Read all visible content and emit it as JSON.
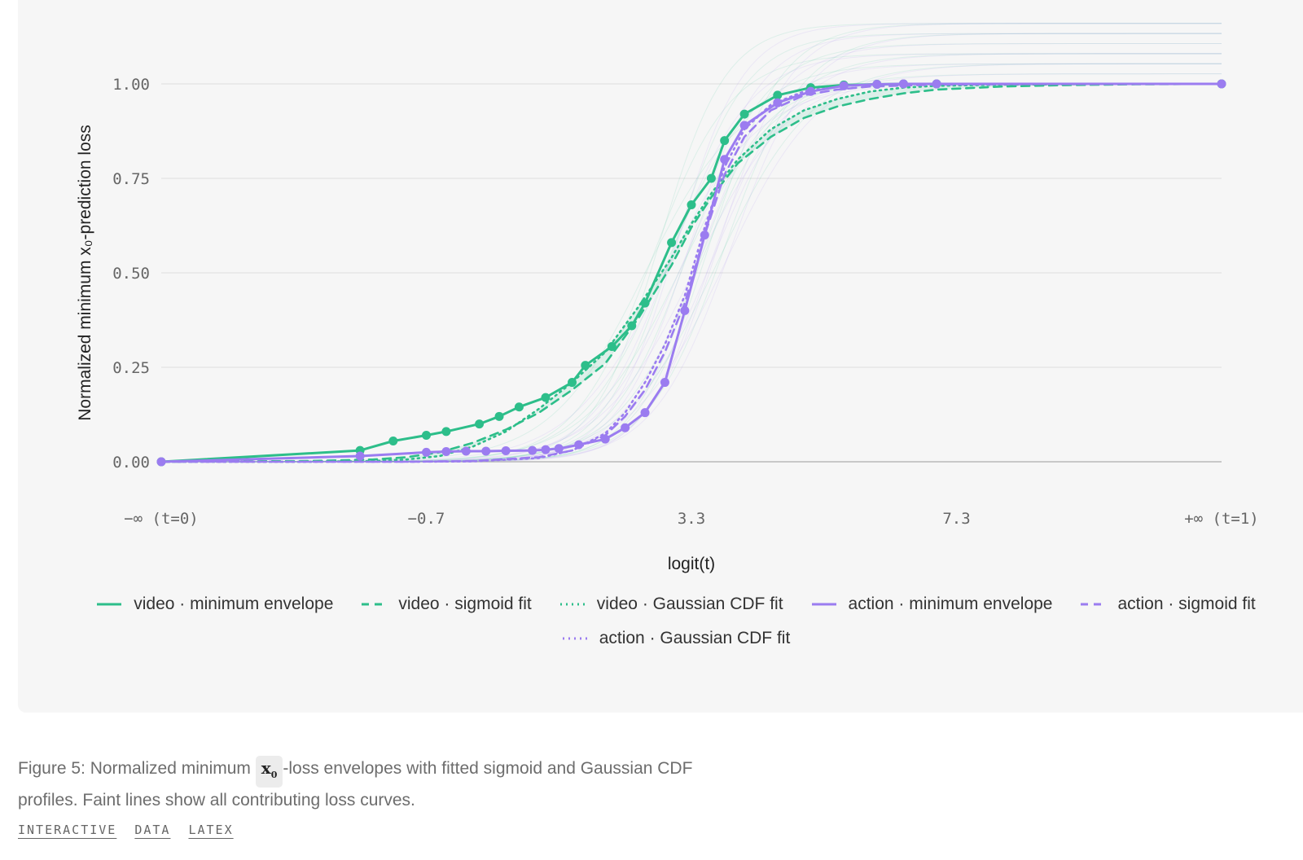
{
  "chart_data": {
    "type": "line",
    "xlabel": "logit(t)",
    "ylabel": "Normalized minimum x₀-prediction loss",
    "x_tick_labels": [
      "−∞ (t=0)",
      "−0.7",
      "3.3",
      "7.3",
      "+∞ (t=1)"
    ],
    "x_tick_values": [
      -4.7,
      -0.7,
      3.3,
      7.3,
      11.3
    ],
    "ylim": [
      0,
      1.2
    ],
    "y_ticks": [
      0.0,
      0.25,
      0.5,
      0.75,
      1.0
    ],
    "y_tick_labels": [
      "0.00",
      "0.25",
      "0.50",
      "0.75",
      "1.00"
    ],
    "grid": "horizontal",
    "legend_position": "bottom",
    "series": [
      {
        "name": "video · minimum envelope",
        "style": "solid-markers",
        "color": "#2dbe8a",
        "x": [
          -4.7,
          -1.7,
          -1.2,
          -0.7,
          -0.4,
          0.1,
          0.4,
          0.7,
          1.1,
          1.5,
          1.7,
          2.1,
          2.4,
          2.6,
          3.0,
          3.3,
          3.6,
          3.8,
          4.1,
          4.6,
          5.1,
          5.6,
          6.1,
          6.5,
          7.0
        ],
        "y": [
          0.0,
          0.03,
          0.055,
          0.07,
          0.08,
          0.1,
          0.12,
          0.145,
          0.17,
          0.21,
          0.255,
          0.305,
          0.36,
          0.42,
          0.58,
          0.68,
          0.75,
          0.85,
          0.92,
          0.97,
          0.99,
          0.997,
          0.999,
          1.0,
          1.0
        ],
        "x_end": 11.3,
        "y_end": 1.0
      },
      {
        "name": "video · sigmoid fit",
        "style": "dashed",
        "color": "#2dbe8a",
        "x": [
          -4.7,
          -2.5,
          -1.5,
          -1.0,
          -0.5,
          0.0,
          0.5,
          1.0,
          1.5,
          2.0,
          2.5,
          3.0,
          3.3,
          3.6,
          4.0,
          4.5,
          5.0,
          5.5,
          6.0,
          6.5,
          7.0,
          8.0,
          9.0,
          10.0,
          11.3
        ],
        "y": [
          0.0,
          0.002,
          0.006,
          0.012,
          0.025,
          0.05,
          0.085,
          0.13,
          0.19,
          0.26,
          0.38,
          0.52,
          0.62,
          0.7,
          0.79,
          0.86,
          0.91,
          0.94,
          0.96,
          0.975,
          0.985,
          0.993,
          0.997,
          0.999,
          1.0
        ]
      },
      {
        "name": "video · Gaussian CDF fit",
        "style": "dotted",
        "color": "#2dbe8a",
        "x": [
          -4.7,
          -2.5,
          -1.5,
          -1.0,
          -0.5,
          0.0,
          0.5,
          1.0,
          1.5,
          2.0,
          2.5,
          3.0,
          3.3,
          3.6,
          4.0,
          4.5,
          5.0,
          5.5,
          6.0,
          6.5,
          7.0,
          8.0,
          9.0,
          10.0,
          11.3
        ],
        "y": [
          0.0,
          0.0,
          0.002,
          0.006,
          0.015,
          0.04,
          0.08,
          0.14,
          0.21,
          0.29,
          0.41,
          0.54,
          0.63,
          0.71,
          0.8,
          0.88,
          0.93,
          0.96,
          0.98,
          0.99,
          0.995,
          0.998,
          0.999,
          1.0,
          1.0
        ]
      },
      {
        "name": "action · minimum envelope",
        "style": "solid-markers",
        "color": "#9b7cf0",
        "x": [
          -4.7,
          -1.7,
          -0.7,
          -0.4,
          -0.1,
          0.2,
          0.5,
          0.9,
          1.1,
          1.3,
          1.6,
          2.0,
          2.3,
          2.6,
          2.9,
          3.2,
          3.5,
          3.8,
          4.1,
          4.6,
          5.1,
          5.6,
          6.1,
          6.5,
          7.0
        ],
        "y": [
          0.0,
          0.015,
          0.025,
          0.027,
          0.028,
          0.028,
          0.029,
          0.03,
          0.032,
          0.035,
          0.045,
          0.06,
          0.09,
          0.13,
          0.21,
          0.4,
          0.6,
          0.8,
          0.89,
          0.95,
          0.98,
          0.995,
          0.999,
          1.0,
          1.0
        ],
        "x_end": 11.3,
        "y_end": 1.0
      },
      {
        "name": "action · sigmoid fit",
        "style": "dashed",
        "color": "#9b7cf0",
        "x": [
          -4.7,
          -1.0,
          0.0,
          1.0,
          1.5,
          2.0,
          2.3,
          2.6,
          2.9,
          3.2,
          3.5,
          3.8,
          4.1,
          4.5,
          5.0,
          5.5,
          6.0,
          7.0,
          8.0,
          9.0,
          11.3
        ],
        "y": [
          0.0,
          0.0,
          0.002,
          0.012,
          0.03,
          0.07,
          0.12,
          0.19,
          0.29,
          0.42,
          0.6,
          0.76,
          0.86,
          0.93,
          0.97,
          0.985,
          0.993,
          0.998,
          0.999,
          1.0,
          1.0
        ]
      },
      {
        "name": "action · Gaussian CDF fit",
        "style": "dotted",
        "color": "#9b7cf0",
        "x": [
          -4.7,
          -1.0,
          0.0,
          1.0,
          1.5,
          2.0,
          2.3,
          2.6,
          2.9,
          3.2,
          3.5,
          3.8,
          4.1,
          4.5,
          5.0,
          5.5,
          6.0,
          7.0,
          8.0,
          9.0,
          11.3
        ],
        "y": [
          0.0,
          0.0,
          0.001,
          0.01,
          0.03,
          0.075,
          0.13,
          0.21,
          0.31,
          0.44,
          0.62,
          0.78,
          0.88,
          0.945,
          0.98,
          0.993,
          0.998,
          1.0,
          1.0,
          1.0,
          1.0
        ]
      }
    ]
  },
  "caption": {
    "prefix": "Figure 5: Normalized minimum",
    "symbol": "x",
    "symbol_sub": "0",
    "suffix": "-loss envelopes with fitted sigmoid and Gaussian CDF profiles. Faint lines show all contributing loss curves."
  },
  "links": [
    "INTERACTIVE",
    "DATA",
    "LATEX"
  ]
}
